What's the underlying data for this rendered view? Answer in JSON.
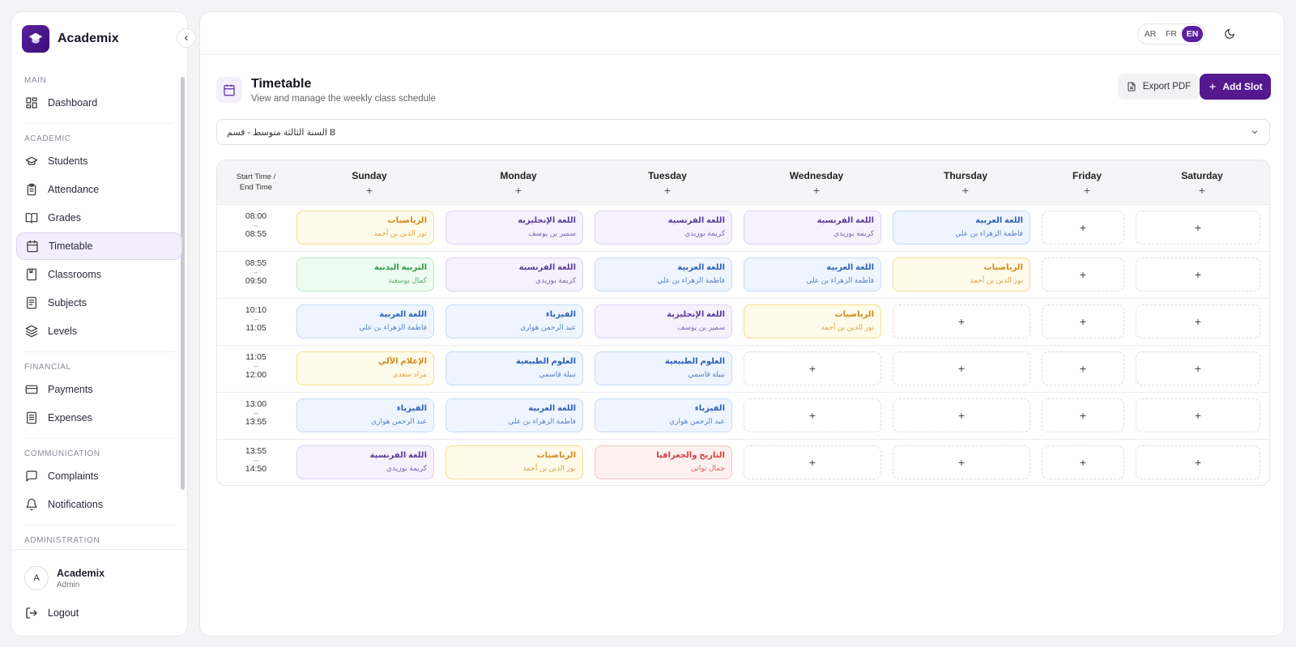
{
  "brand": {
    "name": "Academix"
  },
  "nav": {
    "sections": [
      {
        "label": "MAIN",
        "items": [
          {
            "label": "Dashboard",
            "icon": "dashboard-icon"
          }
        ]
      },
      {
        "label": "ACADEMIC",
        "items": [
          {
            "label": "Students",
            "icon": "graduation-cap-icon"
          },
          {
            "label": "Attendance",
            "icon": "clipboard-icon"
          },
          {
            "label": "Grades",
            "icon": "book-open-icon"
          },
          {
            "label": "Timetable",
            "icon": "calendar-icon",
            "active": true
          },
          {
            "label": "Classrooms",
            "icon": "bookmark-book-icon"
          },
          {
            "label": "Subjects",
            "icon": "document-icon"
          },
          {
            "label": "Levels",
            "icon": "layers-icon"
          }
        ]
      },
      {
        "label": "FINANCIAL",
        "items": [
          {
            "label": "Payments",
            "icon": "credit-card-icon"
          },
          {
            "label": "Expenses",
            "icon": "receipt-icon"
          }
        ]
      },
      {
        "label": "COMMUNICATION",
        "items": [
          {
            "label": "Complaints",
            "icon": "chat-icon"
          },
          {
            "label": "Notifications",
            "icon": "bell-icon"
          }
        ]
      },
      {
        "label": "ADMINISTRATION",
        "items": []
      }
    ]
  },
  "user": {
    "initial": "A",
    "name": "Academix",
    "role": "Admin"
  },
  "logout_label": "Logout",
  "topbar": {
    "languages": [
      {
        "code": "AR"
      },
      {
        "code": "FR"
      },
      {
        "code": "EN",
        "active": true
      }
    ]
  },
  "page": {
    "title": "Timetable",
    "subtitle": "View and manage the weekly class schedule",
    "export_label": "Export PDF",
    "add_label": "Add Slot",
    "selected_class": "السنة الثالثة متوسط - قسم B"
  },
  "table": {
    "time_header": "Start Time / End Time",
    "add_symbol": "+",
    "days": [
      "Sunday",
      "Monday",
      "Tuesday",
      "Wednesday",
      "Thursday",
      "Friday",
      "Saturday"
    ],
    "rows": [
      {
        "start": "08:00",
        "end": "08:55",
        "sep": "–",
        "slots": [
          {
            "subject": "الرياضيات",
            "teacher": "نور الدين بن أحمد",
            "color": "yellow"
          },
          {
            "subject": "اللغة الإنجليزية",
            "teacher": "سمير بن يوسف",
            "color": "purple"
          },
          {
            "subject": "اللغة الفرنسية",
            "teacher": "كريمة بوزيدي",
            "color": "purple"
          },
          {
            "subject": "اللغة الفرنسية",
            "teacher": "كريمة بوزيدي",
            "color": "purple"
          },
          {
            "subject": "اللغة العربية",
            "teacher": "فاطمة الزهراء بن علي",
            "color": "blue"
          },
          null,
          null
        ]
      },
      {
        "start": "08:55",
        "end": "09:50",
        "sep": "–",
        "slots": [
          {
            "subject": "التربية البدنية",
            "teacher": "كمال بوسعيد",
            "color": "green"
          },
          {
            "subject": "اللغة الفرنسية",
            "teacher": "كريمة بوزيدي",
            "color": "purple"
          },
          {
            "subject": "اللغة العربية",
            "teacher": "فاطمة الزهراء بن علي",
            "color": "blue"
          },
          {
            "subject": "اللغة العربية",
            "teacher": "فاطمة الزهراء بن علي",
            "color": "blue"
          },
          {
            "subject": "الرياضيات",
            "teacher": "نور الدين بن أحمد",
            "color": "yellow"
          },
          null,
          null
        ]
      },
      {
        "start": "10:10",
        "end": "11:05",
        "sep": "–",
        "slots": [
          {
            "subject": "اللغة العربية",
            "teacher": "فاطمة الزهراء بن علي",
            "color": "blue"
          },
          {
            "subject": "الفيزياء",
            "teacher": "عبد الرحمن هواري",
            "color": "blue"
          },
          {
            "subject": "اللغة الإنجليزية",
            "teacher": "سمير بن يوسف",
            "color": "purple"
          },
          {
            "subject": "الرياضيات",
            "teacher": "نور الدين بن أحمد",
            "color": "yellow"
          },
          null,
          null,
          null
        ]
      },
      {
        "start": "11:05",
        "end": "12:00",
        "sep": "–",
        "slots": [
          {
            "subject": "الإعلام الآلي",
            "teacher": "مراد سعدي",
            "color": "yellow"
          },
          {
            "subject": "العلوم الطبيعية",
            "teacher": "نبيلة قاسمي",
            "color": "blue"
          },
          {
            "subject": "العلوم الطبيعية",
            "teacher": "نبيلة قاسمي",
            "color": "blue"
          },
          null,
          null,
          null,
          null
        ]
      },
      {
        "start": "13:00",
        "end": "13:55",
        "sep": "–",
        "slots": [
          {
            "subject": "الفيزياء",
            "teacher": "عبد الرحمن هواري",
            "color": "blue"
          },
          {
            "subject": "اللغة العربية",
            "teacher": "فاطمة الزهراء بن علي",
            "color": "blue"
          },
          {
            "subject": "الفيزياء",
            "teacher": "عبد الرحمن هواري",
            "color": "blue"
          },
          null,
          null,
          null,
          null
        ]
      },
      {
        "start": "13:55",
        "end": "14:50",
        "sep": "–",
        "slots": [
          {
            "subject": "اللغة الفرنسية",
            "teacher": "كريمة بوزيدي",
            "color": "purple"
          },
          {
            "subject": "الرياضيات",
            "teacher": "نور الدين بن أحمد",
            "color": "yellow"
          },
          {
            "subject": "التاريخ والجغرافيا",
            "teacher": "جمال تواتي",
            "color": "red"
          },
          null,
          null,
          null,
          null
        ]
      }
    ]
  }
}
